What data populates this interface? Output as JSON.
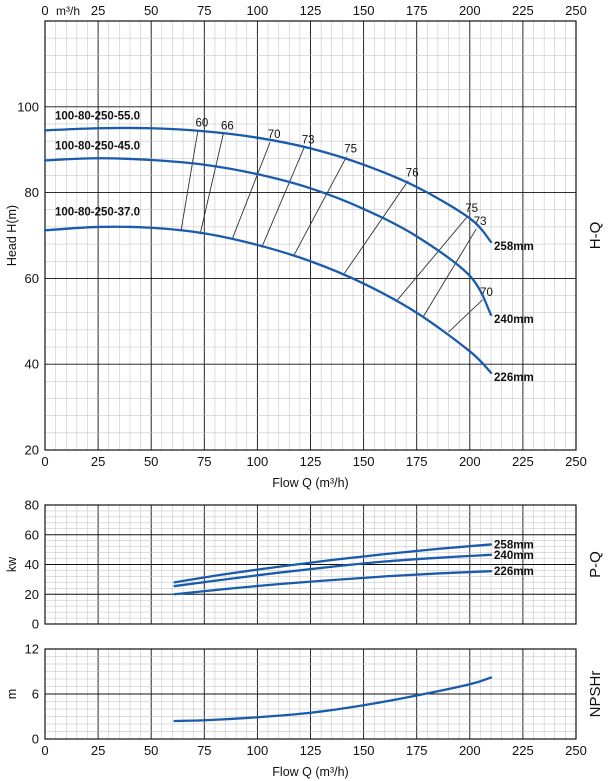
{
  "colors": {
    "curve": "#1a5bab",
    "iso": "#333333",
    "grid_minor": "#bdbdbd",
    "grid_major": "#111111"
  },
  "chart_data": [
    {
      "type": "line",
      "id": "hq",
      "title": "H-Q",
      "xlabel": "Flow Q (m³/h)",
      "ylabel": "Head H(m)",
      "top_axis_unit": "m³/h",
      "xlim": [
        0,
        250
      ],
      "ylim": [
        20,
        120
      ],
      "xticks": [
        0,
        25,
        50,
        75,
        100,
        125,
        150,
        175,
        200,
        225,
        250
      ],
      "top_xticks": [
        25,
        50,
        75,
        100,
        125,
        150,
        175,
        200,
        225,
        250
      ],
      "yticks": [
        20,
        40,
        60,
        80,
        100
      ],
      "series": [
        {
          "name": "258mm",
          "model": "100-80-250-55.0",
          "x": [
            0,
            25,
            50,
            75,
            100,
            125,
            150,
            175,
            200,
            210
          ],
          "y": [
            94.5,
            95.0,
            95.0,
            94.3,
            92.8,
            90.3,
            86.5,
            81.3,
            74.0,
            68.5
          ]
        },
        {
          "name": "240mm",
          "model": "100-80-250-45.0",
          "x": [
            0,
            25,
            50,
            75,
            100,
            125,
            150,
            175,
            200,
            210
          ],
          "y": [
            87.5,
            88.0,
            87.6,
            86.5,
            84.3,
            81.0,
            76.2,
            69.8,
            60.6,
            51.5
          ]
        },
        {
          "name": "226mm",
          "model": "100-80-250-37.0",
          "x": [
            0,
            25,
            50,
            75,
            100,
            125,
            150,
            175,
            200,
            210
          ],
          "y": [
            71.2,
            72.0,
            71.8,
            70.5,
            67.8,
            64.0,
            58.8,
            52.0,
            43.0,
            38.0
          ]
        }
      ],
      "efficiency_lines": [
        {
          "label": "60",
          "x": [
            64,
            72
          ],
          "y": [
            71.0,
            94.5
          ]
        },
        {
          "label": "66",
          "x": [
            73,
            84
          ],
          "y": [
            70.3,
            93.8
          ]
        },
        {
          "label": "70",
          "x": [
            88,
            106
          ],
          "y": [
            69.0,
            91.8
          ]
        },
        {
          "label": "73",
          "x": [
            102,
            122
          ],
          "y": [
            67.2,
            90.5
          ]
        },
        {
          "label": "75",
          "x": [
            117,
            142
          ],
          "y": [
            65.2,
            88.4
          ]
        },
        {
          "label": "76",
          "x": [
            141,
            171
          ],
          "y": [
            61.2,
            82.8
          ]
        },
        {
          "label": "75",
          "x": [
            166,
            199
          ],
          "y": [
            55.0,
            74.5
          ]
        },
        {
          "label": "73",
          "x": [
            178,
            203
          ],
          "y": [
            51.0,
            71.5
          ]
        },
        {
          "label": "70",
          "x": [
            190,
            206
          ],
          "y": [
            47.5,
            55.0
          ]
        }
      ]
    },
    {
      "type": "line",
      "id": "pq",
      "title": "P-Q",
      "xlabel": "",
      "ylabel": "kw",
      "xlim": [
        0,
        250
      ],
      "ylim": [
        0,
        80
      ],
      "yticks": [
        0,
        20,
        40,
        60,
        80
      ],
      "series": [
        {
          "name": "258mm",
          "x": [
            61,
            85,
            110,
            135,
            160,
            185,
            210
          ],
          "y": [
            28.0,
            33.5,
            38.5,
            43.0,
            47.0,
            50.5,
            53.5
          ]
        },
        {
          "name": "240mm",
          "x": [
            61,
            85,
            110,
            135,
            160,
            185,
            210
          ],
          "y": [
            25.5,
            30.0,
            34.5,
            38.5,
            42.0,
            44.5,
            46.5
          ]
        },
        {
          "name": "226mm",
          "x": [
            61,
            85,
            110,
            135,
            160,
            185,
            210
          ],
          "y": [
            20.0,
            23.5,
            26.8,
            29.5,
            32.0,
            34.0,
            35.5
          ]
        }
      ]
    },
    {
      "type": "line",
      "id": "npsh",
      "title": "NPSHr",
      "xlabel": "Flow Q (m³/h)",
      "ylabel": "m",
      "xlim": [
        0,
        250
      ],
      "ylim": [
        0,
        12
      ],
      "xticks": [
        0,
        25,
        50,
        75,
        100,
        125,
        150,
        175,
        200,
        225,
        250
      ],
      "yticks": [
        0,
        6,
        12
      ],
      "series": [
        {
          "name": "NPSHr",
          "x": [
            61,
            75,
            100,
            125,
            150,
            175,
            200,
            210
          ],
          "y": [
            2.4,
            2.5,
            2.9,
            3.5,
            4.5,
            5.8,
            7.3,
            8.2
          ]
        }
      ]
    }
  ]
}
